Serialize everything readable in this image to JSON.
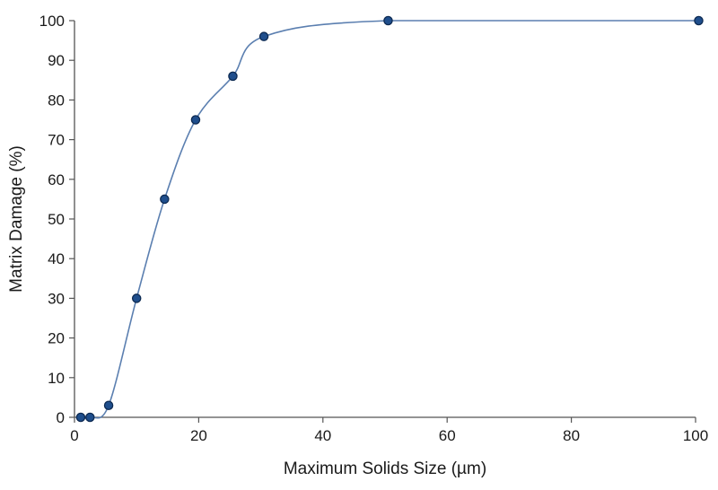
{
  "chart_data": {
    "type": "scatter",
    "title": "",
    "xlabel": "Maximum Solids Size (µm)",
    "ylabel": "Matrix Damage (%)",
    "xlim": [
      0,
      100
    ],
    "ylim": [
      0,
      100
    ],
    "x_ticks": [
      0,
      20,
      40,
      60,
      80,
      100
    ],
    "y_ticks": [
      0,
      10,
      20,
      30,
      40,
      50,
      60,
      70,
      80,
      90,
      100
    ],
    "grid": false,
    "legend": "none",
    "fitted_curve": true,
    "colors": {
      "point_fill": "#1f4e8c",
      "point_stroke": "#0d2a52",
      "curve": "#5b7fb0",
      "axis": "#555555"
    },
    "series": [
      {
        "x": [
          1,
          2.5,
          5.5,
          10,
          14.5,
          19.5,
          25.5,
          30.5,
          50.5,
          100.5
        ],
        "y": [
          0,
          0,
          3,
          30,
          55,
          75,
          86,
          96,
          100,
          100
        ]
      }
    ]
  }
}
